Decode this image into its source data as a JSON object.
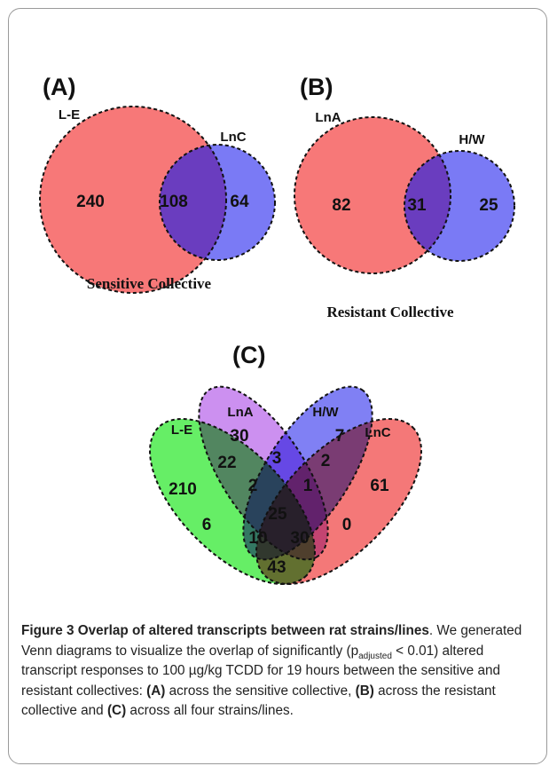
{
  "panels": [
    {
      "label": "(A)",
      "sets": [
        "L-E",
        "LnC"
      ],
      "regions": [
        "240",
        "108",
        "64"
      ],
      "title": "Sensitive Collective"
    },
    {
      "label": "(B)",
      "sets": [
        "LnA",
        "H/W"
      ],
      "regions": [
        "82",
        "31",
        "25"
      ],
      "title": "Resistant Collective"
    },
    {
      "label": "(C)",
      "sets": [
        "L-E",
        "LnA",
        "H/W",
        "LnC"
      ],
      "regions": [
        "30",
        "7",
        "22",
        "3",
        "2",
        "210",
        "2",
        "1",
        "61",
        "25",
        "6",
        "10",
        "30",
        "0",
        "43"
      ]
    }
  ],
  "caption": {
    "title": "Figure 3 Overlap of altered transcripts between rat strains/lines",
    "title_end": ".",
    "text1": "We generated Venn diagrams to visualize the overlap of significantly (p",
    "sub": "adjusted",
    "text2": " < 0.01) altered transcript responses to 100 µg/kg TCDD for 19 hours between the sensitive and resistant collectives: ",
    "a_label": "(A)",
    "a_text": " across the sensitive collective, ",
    "b_label": "(B)",
    "b_text": " across the resistant collective and ",
    "c_label": "(C)",
    "c_text": " across all four strains/lines."
  }
}
